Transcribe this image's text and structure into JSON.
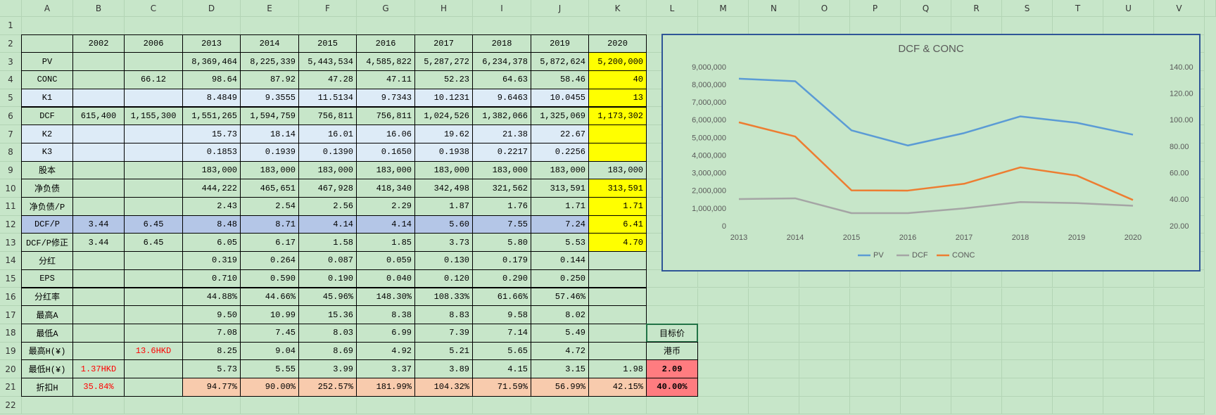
{
  "sheet": {
    "columns": [
      "A",
      "B",
      "C",
      "D",
      "E",
      "F",
      "G",
      "H",
      "I",
      "J",
      "K",
      "L",
      "M",
      "N",
      "O",
      "P",
      "Q",
      "R",
      "S",
      "T",
      "U",
      "V"
    ],
    "row_numbers": [
      1,
      2,
      3,
      4,
      5,
      6,
      7,
      8,
      9,
      10,
      11,
      12,
      13,
      14,
      15,
      16,
      17,
      18,
      19,
      20,
      21,
      22
    ],
    "rows": [
      null,
      [
        null,
        "2002",
        "2006",
        "2013",
        "2014",
        "2015",
        "2016",
        "2017",
        "2018",
        "2019",
        "2020",
        null
      ],
      [
        "PV",
        null,
        null,
        "8,369,464",
        "8,225,339",
        "5,443,534",
        "4,585,822",
        "5,287,272",
        "6,234,378",
        "5,872,624",
        "5,200,000",
        null
      ],
      [
        "CONC",
        null,
        "66.12",
        "98.64",
        "87.92",
        "47.28",
        "47.11",
        "52.23",
        "64.63",
        "58.46",
        "40",
        null
      ],
      [
        "K1",
        null,
        null,
        "8.4849",
        "9.3555",
        "11.5134",
        "9.7343",
        "10.1231",
        "9.6463",
        "10.0455",
        "13",
        null
      ],
      [
        "DCF",
        "615,400",
        "1,155,300",
        "1,551,265",
        "1,594,759",
        "756,811",
        "756,811",
        "1,024,526",
        "1,382,066",
        "1,325,069",
        "1,173,302",
        null
      ],
      [
        "K2",
        null,
        null,
        "15.73",
        "18.14",
        "16.01",
        "16.06",
        "19.62",
        "21.38",
        "22.67",
        null,
        null
      ],
      [
        "K3",
        null,
        null,
        "0.1853",
        "0.1939",
        "0.1390",
        "0.1650",
        "0.1938",
        "0.2217",
        "0.2256",
        null,
        null
      ],
      [
        "股本",
        null,
        null,
        "183,000",
        "183,000",
        "183,000",
        "183,000",
        "183,000",
        "183,000",
        "183,000",
        "183,000",
        null
      ],
      [
        "净负债",
        null,
        null,
        "444,222",
        "465,651",
        "467,928",
        "418,340",
        "342,498",
        "321,562",
        "313,591",
        "313,591",
        null
      ],
      [
        "净负债/P",
        null,
        null,
        "2.43",
        "2.54",
        "2.56",
        "2.29",
        "1.87",
        "1.76",
        "1.71",
        "1.71",
        null
      ],
      [
        "DCF/P",
        "3.44",
        "6.45",
        "8.48",
        "8.71",
        "4.14",
        "4.14",
        "5.60",
        "7.55",
        "7.24",
        "6.41",
        null
      ],
      [
        "DCF/P修正",
        "3.44",
        "6.45",
        "6.05",
        "6.17",
        "1.58",
        "1.85",
        "3.73",
        "5.80",
        "5.53",
        "4.70",
        null
      ],
      [
        "分红",
        null,
        null,
        "0.319",
        "0.264",
        "0.087",
        "0.059",
        "0.130",
        "0.179",
        "0.144",
        null,
        null
      ],
      [
        "EPS",
        null,
        null,
        "0.710",
        "0.590",
        "0.190",
        "0.040",
        "0.120",
        "0.290",
        "0.250",
        null,
        null
      ],
      [
        "分红率",
        null,
        null,
        "44.88%",
        "44.66%",
        "45.96%",
        "148.30%",
        "108.33%",
        "61.66%",
        "57.46%",
        null,
        null
      ],
      [
        "最高A",
        null,
        null,
        "9.50",
        "10.99",
        "15.36",
        "8.38",
        "8.83",
        "9.58",
        "8.02",
        null,
        null
      ],
      [
        "最低A",
        null,
        null,
        "7.08",
        "7.45",
        "8.03",
        "6.99",
        "7.39",
        "7.14",
        "5.49",
        null,
        "目标价"
      ],
      [
        "最高H(¥)",
        null,
        "13.6HKD",
        "8.25",
        "9.04",
        "8.69",
        "4.92",
        "5.21",
        "5.65",
        "4.72",
        null,
        "港币"
      ],
      [
        "最低H(¥)",
        "1.37HKD",
        null,
        "5.73",
        "5.55",
        "3.99",
        "3.37",
        "3.89",
        "4.15",
        "3.15",
        "1.98",
        "2.09"
      ],
      [
        "折扣H",
        "35.84%",
        null,
        "94.77%",
        "90.00%",
        "252.57%",
        "181.99%",
        "104.32%",
        "71.59%",
        "56.99%",
        "42.15%",
        "40.00%"
      ],
      null
    ]
  },
  "chart_data": {
    "type": "line",
    "title": "DCF & CONC",
    "categories": [
      "2013",
      "2014",
      "2015",
      "2016",
      "2017",
      "2018",
      "2019",
      "2020"
    ],
    "series": [
      {
        "name": "PV",
        "color": "#5b9bd5",
        "values": [
          8369464,
          8225339,
          5443534,
          4585822,
          5287272,
          6234378,
          5872624,
          5200000
        ]
      },
      {
        "name": "DCF",
        "color": "#a5a5a5",
        "values": [
          1551265,
          1594759,
          756811,
          756811,
          1024526,
          1382066,
          1325069,
          1173302
        ]
      },
      {
        "name": "CONC",
        "color": "#ed7d31",
        "axis": "y2",
        "values": [
          98.64,
          87.92,
          47.28,
          47.11,
          52.23,
          64.63,
          58.46,
          40
        ]
      }
    ],
    "ylim": [
      0,
      9000000
    ],
    "yticks": [
      0,
      {
        "value": 1000000,
        "label": "1,000,000"
      },
      {
        "value": 2000000,
        "label": "2,000,000"
      },
      {
        "value": 3000000,
        "label": "3,000,000"
      },
      {
        "value": 4000000,
        "label": "4,000,000"
      },
      {
        "value": 5000000,
        "label": "5,000,000"
      },
      {
        "value": 6000000,
        "label": "6,000,000"
      },
      {
        "value": 7000000,
        "label": "7,000,000"
      },
      {
        "value": 8000000,
        "label": "8,000,000"
      },
      {
        "value": 9000000,
        "label": "9,000,000"
      }
    ],
    "y2lim": [
      20,
      140
    ],
    "y2ticks": [
      {
        "value": 20,
        "label": "20.00"
      },
      {
        "value": 40,
        "label": "40.00"
      },
      {
        "value": 60,
        "label": "60.00"
      },
      {
        "value": 80,
        "label": "80.00"
      },
      {
        "value": 100,
        "label": "100.00"
      },
      {
        "value": 120,
        "label": "120.00"
      },
      {
        "value": 140,
        "label": "140.00"
      }
    ],
    "legend": "bottom"
  }
}
